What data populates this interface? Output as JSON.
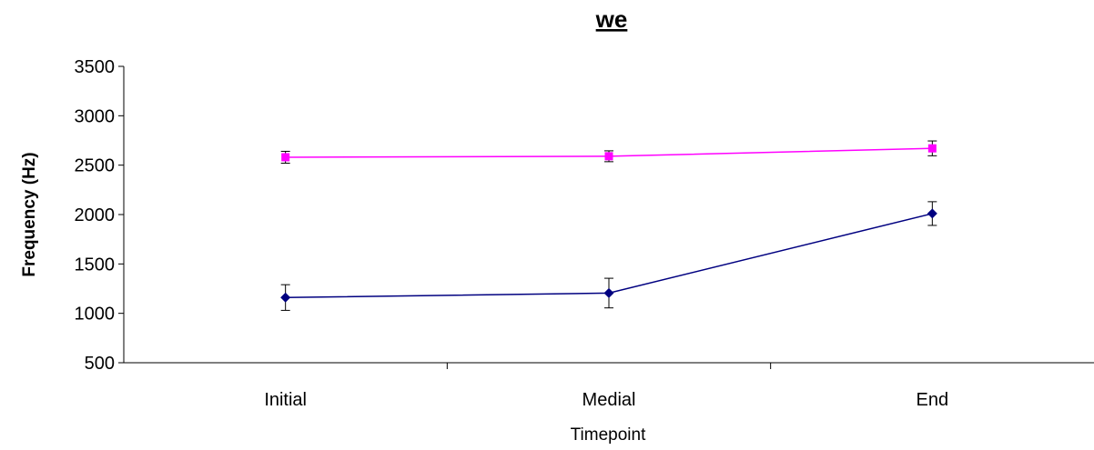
{
  "chart_data": {
    "type": "line",
    "title": "we",
    "xlabel": "Timepoint",
    "ylabel": "Frequency (Hz)",
    "categories": [
      "Initial",
      "Medial",
      "End"
    ],
    "ylim": [
      500,
      3500
    ],
    "yticks": [
      500,
      1000,
      1500,
      2000,
      2500,
      3000,
      3500
    ],
    "grid": false,
    "legend": "none",
    "series": [
      {
        "values": [
          2580,
          2590,
          2670
        ],
        "errors": [
          60,
          55,
          75
        ],
        "color": "#ff00ff",
        "marker": "square"
      },
      {
        "values": [
          1160,
          1205,
          2010
        ],
        "errors": [
          130,
          150,
          120
        ],
        "color": "#000080",
        "marker": "diamond"
      }
    ]
  }
}
